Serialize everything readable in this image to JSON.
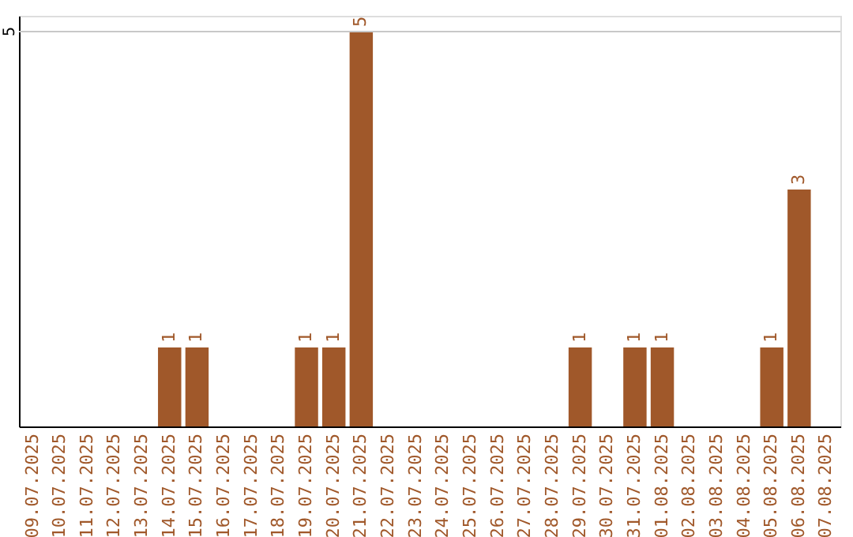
{
  "chart_data": {
    "type": "bar",
    "categories": [
      "09.07.2025",
      "10.07.2025",
      "11.07.2025",
      "12.07.2025",
      "13.07.2025",
      "14.07.2025",
      "15.07.2025",
      "16.07.2025",
      "17.07.2025",
      "18.07.2025",
      "19.07.2025",
      "20.07.2025",
      "21.07.2025",
      "22.07.2025",
      "23.07.2025",
      "24.07.2025",
      "25.07.2025",
      "26.07.2025",
      "27.07.2025",
      "28.07.2025",
      "29.07.2025",
      "30.07.2025",
      "31.07.2025",
      "01.08.2025",
      "02.08.2025",
      "03.08.2025",
      "04.08.2025",
      "05.08.2025",
      "06.08.2025",
      "07.08.2025"
    ],
    "values": [
      0,
      0,
      0,
      0,
      0,
      1,
      1,
      0,
      0,
      0,
      1,
      1,
      5,
      0,
      0,
      0,
      0,
      0,
      0,
      0,
      1,
      0,
      1,
      1,
      0,
      0,
      0,
      1,
      3,
      0
    ],
    "ref_lines": [
      {
        "axis": "y",
        "value": 5,
        "label": "5",
        "color": "#c8c8c8"
      }
    ],
    "value_labels": [
      null,
      null,
      null,
      null,
      null,
      "1",
      "1",
      null,
      null,
      null,
      "1",
      "1",
      "5",
      null,
      null,
      null,
      null,
      null,
      null,
      null,
      "1",
      null,
      "1",
      "1",
      null,
      null,
      null,
      "1",
      "3",
      null
    ],
    "color": "#a0582a"
  }
}
